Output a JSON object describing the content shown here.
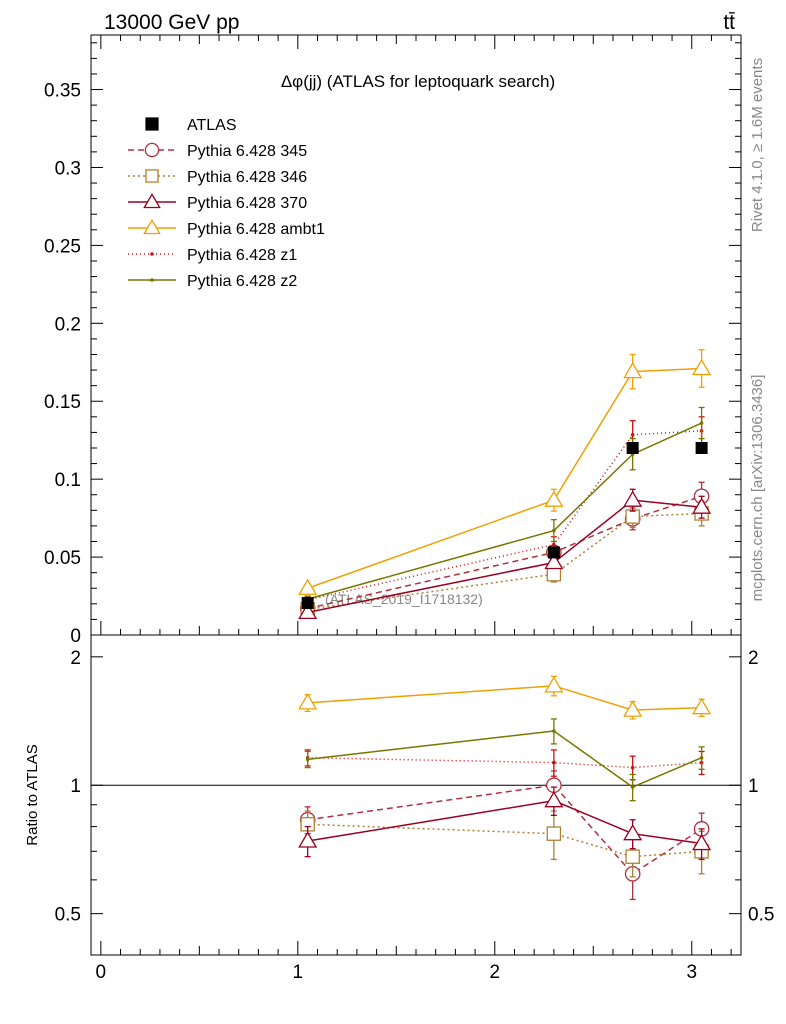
{
  "header": {
    "left": "13000 GeV pp",
    "right": "tt̄"
  },
  "chart_data": {
    "type": "line",
    "title": "Δφ(jj) (ATLAS for leptoquark search)",
    "watermark": "(ATLAS_2019_I1718132)",
    "side_labels": {
      "upper": "Rivet 4.1.0, ≥ 1.6M events",
      "lower": "mcplots.cern.ch [arXiv:1306.3436]"
    },
    "x": [
      1.05,
      2.3,
      2.7,
      3.05
    ],
    "xlim": [
      -0.05,
      3.25
    ],
    "xticks": [
      "0",
      "1",
      "2",
      "3"
    ],
    "main": {
      "ylim": [
        0,
        0.385
      ],
      "yticks": [
        "0",
        "0.05",
        "0.1",
        "0.15",
        "0.2",
        "0.25",
        "0.3",
        "0.35"
      ]
    },
    "ratio": {
      "ylabel": "Ratio to ATLAS",
      "ylim": [
        0.4,
        2.25
      ],
      "yticks": [
        "0.5",
        "1",
        "2"
      ]
    },
    "data": {
      "name": "ATLAS",
      "color": "#000000",
      "values": [
        0.0205,
        0.053,
        0.12,
        0.12
      ]
    },
    "series": [
      {
        "name": "Pythia 6.428 345",
        "color": "#b03040",
        "dash": "6,4",
        "marker": "circle",
        "values": [
          0.017,
          0.053,
          0.0745,
          0.089
        ],
        "errors": [
          0.002,
          0.004,
          0.007,
          0.009
        ],
        "ratio": [
          0.83,
          1.0,
          0.62,
          0.79
        ],
        "ratio_errors": [
          0.06,
          0.08,
          0.08,
          0.07
        ]
      },
      {
        "name": "Pythia 6.428 346",
        "color": "#b08030",
        "dash": "2,3",
        "marker": "square",
        "values": [
          0.0165,
          0.039,
          0.076,
          0.078
        ],
        "errors": [
          0.002,
          0.005,
          0.007,
          0.008
        ],
        "ratio": [
          0.81,
          0.77,
          0.68,
          0.7
        ],
        "ratio_errors": [
          0.06,
          0.1,
          0.07,
          0.08
        ]
      },
      {
        "name": "Pythia 6.428 370",
        "color": "#990022",
        "dash": "",
        "marker": "triangle",
        "values": [
          0.0145,
          0.0465,
          0.0865,
          0.082
        ],
        "errors": [
          0.002,
          0.003,
          0.007,
          0.007
        ],
        "ratio": [
          0.74,
          0.92,
          0.77,
          0.73
        ],
        "ratio_errors": [
          0.06,
          0.07,
          0.06,
          0.06
        ]
      },
      {
        "name": "Pythia 6.428 ambt1",
        "color": "#f0a000",
        "dash": "",
        "marker": "triangle",
        "values": [
          0.03,
          0.0865,
          0.169,
          0.171
        ],
        "errors": [
          0.002,
          0.007,
          0.011,
          0.012
        ],
        "ratio": [
          1.56,
          1.71,
          1.5,
          1.52
        ],
        "ratio_errors": [
          0.07,
          0.09,
          0.07,
          0.07
        ]
      },
      {
        "name": "Pythia 6.428 z1",
        "color": "#d01010",
        "dash": "1,3",
        "marker": "dot",
        "values": [
          0.0225,
          0.058,
          0.1285,
          0.131
        ],
        "errors": [
          0.002,
          0.005,
          0.009,
          0.009
        ],
        "ratio": [
          1.16,
          1.13,
          1.1,
          1.13
        ],
        "ratio_errors": [
          0.05,
          0.08,
          0.07,
          0.07
        ]
      },
      {
        "name": "Pythia 6.428 z2",
        "color": "#777700",
        "dash": "",
        "marker": "dot",
        "values": [
          0.023,
          0.067,
          0.116,
          0.136
        ],
        "errors": [
          0.002,
          0.007,
          0.01,
          0.01
        ],
        "ratio": [
          1.15,
          1.34,
          0.99,
          1.16
        ],
        "ratio_errors": [
          0.05,
          0.09,
          0.07,
          0.07
        ]
      }
    ]
  }
}
